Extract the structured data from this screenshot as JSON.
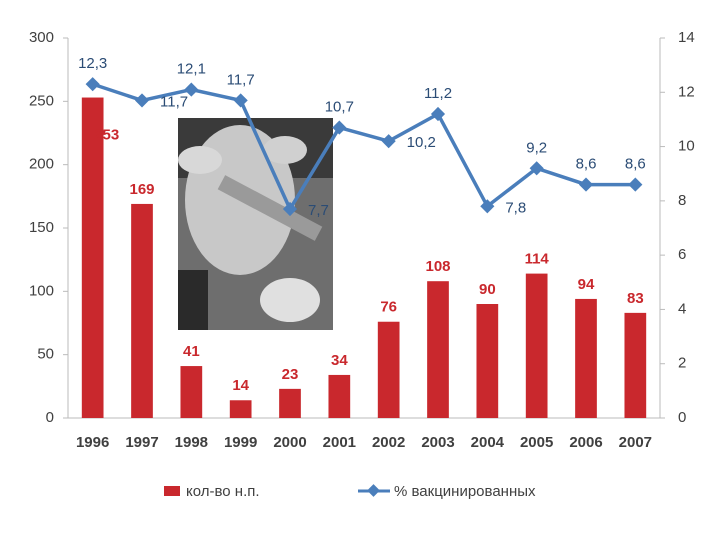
{
  "chart_data": {
    "type": "combo",
    "categories": [
      "1996",
      "1997",
      "1998",
      "1999",
      "2000",
      "2001",
      "2002",
      "2003",
      "2004",
      "2005",
      "2006",
      "2007"
    ],
    "series": [
      {
        "name": "кол-во н.п.",
        "type": "bar",
        "color": "#c9282d",
        "values": [
          253,
          169,
          41,
          14,
          23,
          34,
          76,
          108,
          90,
          114,
          94,
          83
        ]
      },
      {
        "name": "% вакцинированных",
        "type": "line",
        "axis": "y2",
        "color": "#4a7ebb",
        "values": [
          12.3,
          11.7,
          12.1,
          11.7,
          7.7,
          10.7,
          10.2,
          11.2,
          7.8,
          9.2,
          8.6,
          8.6
        ],
        "value_labels": [
          "12,3",
          "11,7",
          "12,1",
          "11,7",
          "7,7",
          "10,7",
          "10,2",
          "11,2",
          "7,8",
          "9,2",
          "8,6",
          "8,6"
        ]
      }
    ],
    "ylim": [
      0,
      300
    ],
    "yticks": [
      0,
      50,
      100,
      150,
      200,
      250,
      300
    ],
    "y2lim": [
      0,
      14
    ],
    "y2ticks": [
      0,
      2,
      4,
      6,
      8,
      10,
      12,
      14
    ],
    "grid": false,
    "legend": "bottom"
  }
}
